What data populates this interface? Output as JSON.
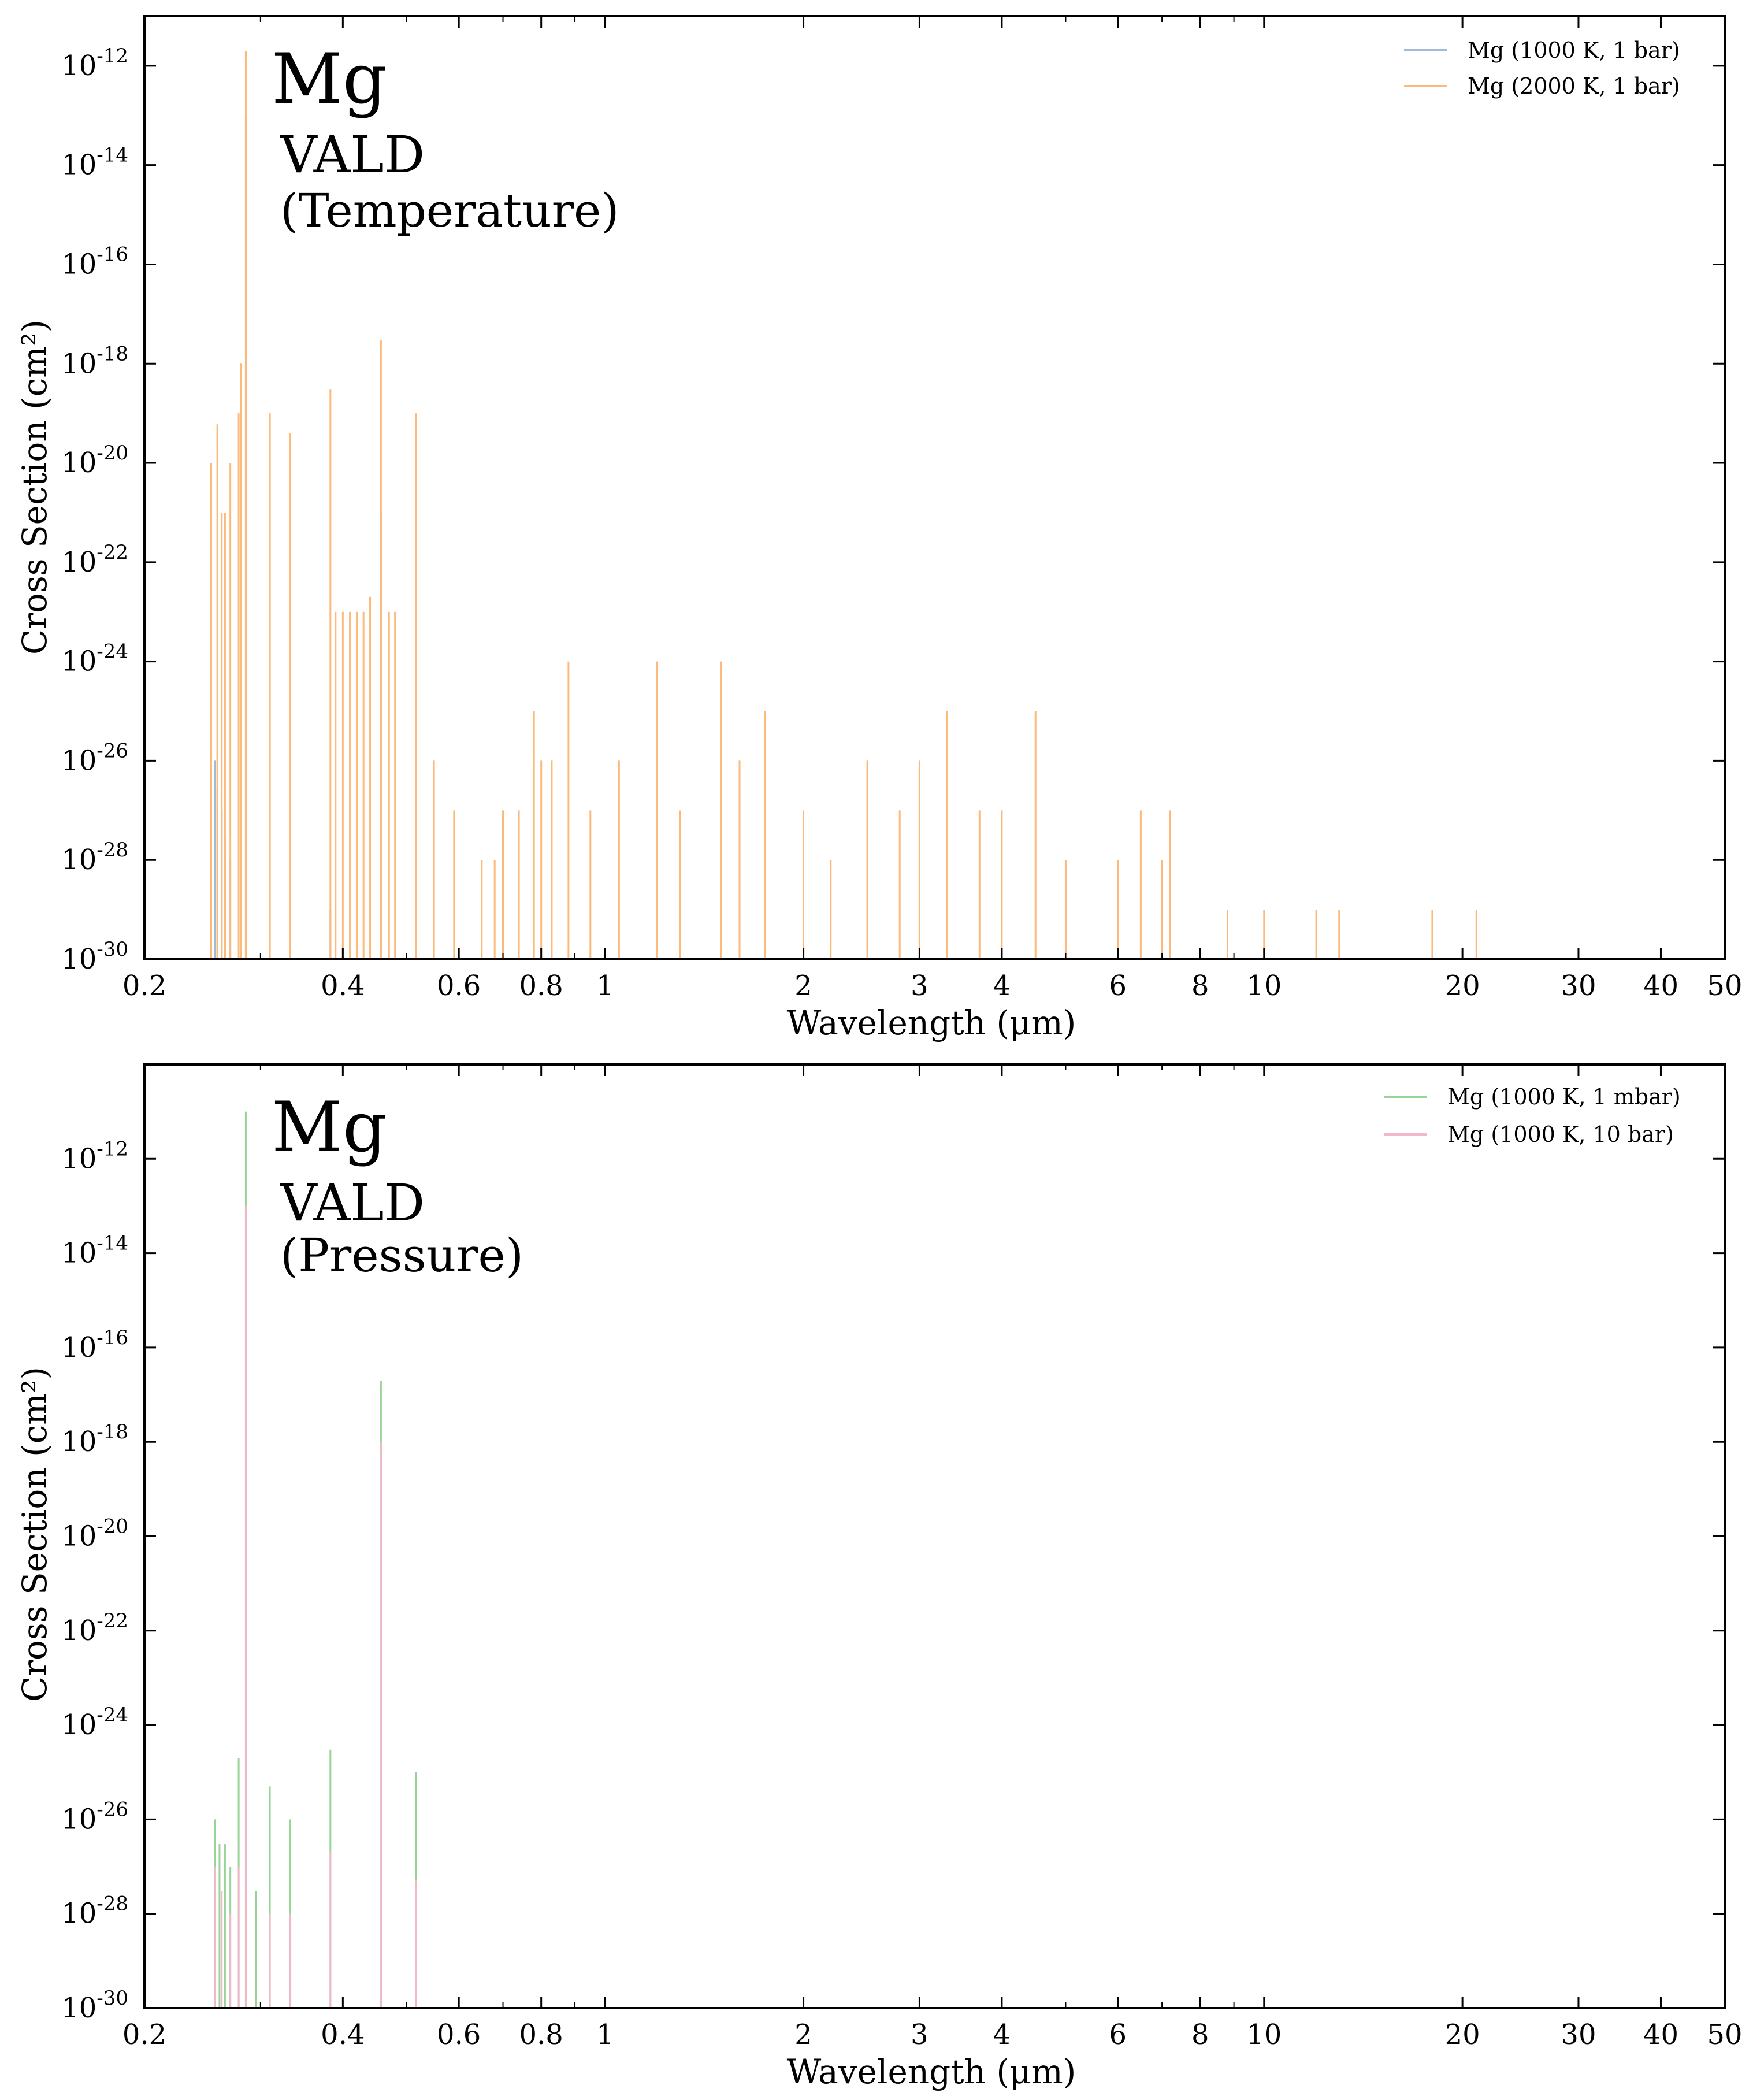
{
  "chart_data": [
    {
      "type": "line",
      "annotation": {
        "line1": "Mg",
        "line2": "VALD",
        "line3": "(Temperature)"
      },
      "xlabel": "Wavelength (μm)",
      "ylabel": "Cross Section (cm²)",
      "xscale": "log",
      "yscale": "log",
      "xlim": [
        0.2,
        50
      ],
      "ylim": [
        1e-30,
        1e-11
      ],
      "x_ticks": [
        0.2,
        0.4,
        0.6,
        0.8,
        1,
        2,
        3,
        4,
        6,
        8,
        10,
        20,
        30,
        40,
        50
      ],
      "x_tick_labels": [
        "0.2",
        "0.4",
        "0.6",
        "0.8",
        "1",
        "2",
        "3",
        "4",
        "6",
        "8",
        "10",
        "20",
        "30",
        "40",
        "50"
      ],
      "y_tick_exponents": [
        -12,
        -14,
        -16,
        -18,
        -20,
        -22,
        -24,
        -26,
        -28,
        -30
      ],
      "grid": false,
      "legend": "top-right",
      "series": [
        {
          "name": "Mg (1000 K, 1 bar)",
          "color": "#a0bad8",
          "lines": [
            [
              0.256,
              1e-26
            ],
            [
              0.258,
              3e-27
            ],
            [
              0.262,
              1e-27
            ],
            [
              0.265,
              3e-28
            ],
            [
              0.27,
              1e-28
            ],
            [
              0.285,
              1e-13
            ],
            [
              0.457,
              1e-21
            ],
            [
              0.517,
              1e-26
            ],
            [
              0.383,
              1e-29
            ]
          ]
        },
        {
          "name": "Mg (2000 K, 1 bar)",
          "color": "#fdb97a",
          "lines": [
            [
              0.285,
              2e-12
            ],
            [
              0.28,
              1e-18
            ],
            [
              0.27,
              1e-20
            ],
            [
              0.265,
              1e-21
            ],
            [
              0.262,
              1e-21
            ],
            [
              0.2525,
              1e-20
            ],
            [
              0.258,
              6e-20
            ],
            [
              0.278,
              1e-19
            ],
            [
              0.31,
              1e-19
            ],
            [
              0.333,
              4e-20
            ],
            [
              0.383,
              3e-19
            ],
            [
              0.457,
              3e-18
            ],
            [
              0.517,
              1e-19
            ],
            [
              0.47,
              1e-23
            ],
            [
              0.39,
              1e-23
            ],
            [
              0.4,
              1e-23
            ],
            [
              0.41,
              1e-23
            ],
            [
              0.42,
              1e-23
            ],
            [
              0.43,
              1e-23
            ],
            [
              0.44,
              2e-23
            ],
            [
              0.48,
              1e-23
            ],
            [
              0.55,
              1e-26
            ],
            [
              0.59,
              1e-27
            ],
            [
              0.65,
              1e-28
            ],
            [
              0.68,
              1e-28
            ],
            [
              0.7,
              1e-27
            ],
            [
              0.74,
              1e-27
            ],
            [
              0.78,
              1e-25
            ],
            [
              0.8,
              1e-26
            ],
            [
              0.83,
              1e-26
            ],
            [
              0.88,
              1e-24
            ],
            [
              0.95,
              1e-27
            ],
            [
              1.05,
              1e-26
            ],
            [
              1.2,
              1e-24
            ],
            [
              1.3,
              1e-27
            ],
            [
              1.5,
              1e-24
            ],
            [
              1.6,
              1e-26
            ],
            [
              1.75,
              1e-25
            ],
            [
              2.0,
              1e-27
            ],
            [
              2.2,
              1e-28
            ],
            [
              2.5,
              1e-26
            ],
            [
              2.8,
              1e-27
            ],
            [
              3.0,
              1e-26
            ],
            [
              3.3,
              1e-25
            ],
            [
              3.7,
              1e-27
            ],
            [
              4.0,
              1e-27
            ],
            [
              4.5,
              1e-25
            ],
            [
              5.0,
              1e-28
            ],
            [
              6.0,
              1e-28
            ],
            [
              6.5,
              1e-27
            ],
            [
              7.0,
              1e-28
            ],
            [
              7.2,
              1e-27
            ],
            [
              8.8,
              1e-29
            ],
            [
              10,
              1e-29
            ],
            [
              12,
              1e-29
            ],
            [
              13,
              1e-29
            ],
            [
              18,
              1e-29
            ],
            [
              21,
              1e-29
            ],
            [
              27,
              1e-30
            ],
            [
              35,
              1e-30
            ],
            [
              42,
              1e-30
            ]
          ]
        }
      ]
    },
    {
      "type": "line",
      "annotation": {
        "line1": "Mg",
        "line2": "VALD",
        "line3": "(Pressure)"
      },
      "xlabel": "Wavelength (μm)",
      "ylabel": "Cross Section (cm²)",
      "xscale": "log",
      "yscale": "log",
      "xlim": [
        0.2,
        50
      ],
      "ylim": [
        1e-30,
        1e-10
      ],
      "x_ticks": [
        0.2,
        0.4,
        0.6,
        0.8,
        1,
        2,
        3,
        4,
        6,
        8,
        10,
        20,
        30,
        40,
        50
      ],
      "x_tick_labels": [
        "0.2",
        "0.4",
        "0.6",
        "0.8",
        "1",
        "2",
        "3",
        "4",
        "6",
        "8",
        "10",
        "20",
        "30",
        "40",
        "50"
      ],
      "y_tick_exponents": [
        -12,
        -14,
        -16,
        -18,
        -20,
        -22,
        -24,
        -26,
        -28,
        -30
      ],
      "grid": false,
      "legend": "top-right",
      "series": [
        {
          "name": "Mg (1000 K, 1 mbar)",
          "color": "#98d498",
          "lines": [
            [
              0.285,
              1e-11
            ],
            [
              0.278,
              2e-25
            ],
            [
              0.256,
              1e-26
            ],
            [
              0.26,
              3e-27
            ],
            [
              0.265,
              3e-27
            ],
            [
              0.27,
              1e-27
            ],
            [
              0.31,
              5e-26
            ],
            [
              0.333,
              1e-26
            ],
            [
              0.383,
              3e-25
            ],
            [
              0.457,
              2e-17
            ],
            [
              0.517,
              1e-25
            ],
            [
              0.295,
              3e-28
            ]
          ]
        },
        {
          "name": "Mg (1000 K, 10 bar)",
          "color": "#f0b8c8",
          "lines": [
            [
              0.285,
              1e-13
            ],
            [
              0.278,
              1e-27
            ],
            [
              0.256,
              1e-27
            ],
            [
              0.262,
              3e-28
            ],
            [
              0.27,
              1e-28
            ],
            [
              0.31,
              1e-28
            ],
            [
              0.333,
              1e-28
            ],
            [
              0.383,
              2e-27
            ],
            [
              0.457,
              1e-18
            ],
            [
              0.517,
              5e-28
            ]
          ]
        }
      ]
    }
  ]
}
